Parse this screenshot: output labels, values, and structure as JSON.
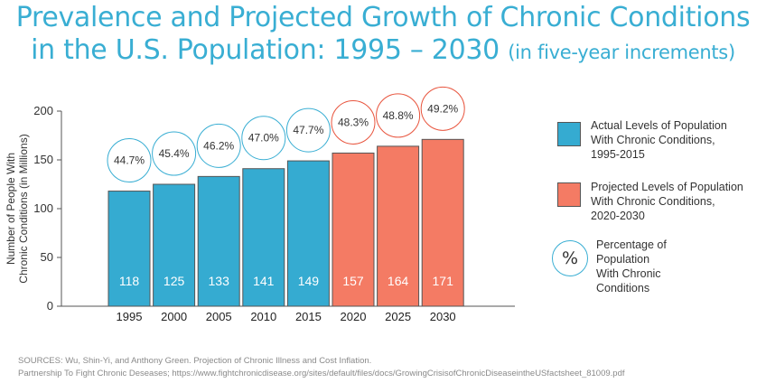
{
  "title": {
    "line1": "Prevalence and Projected Growth of Chronic Conditions",
    "line2_main": "in the U.S. Population: 1995 – 2030",
    "line2_sub": "(in five-year increments)"
  },
  "colors": {
    "title": "#39aed3",
    "actual": "#35abd1",
    "projected": "#f47b64",
    "actual_circle": "#39aed3",
    "projected_circle": "#e8543d"
  },
  "chart_data": {
    "type": "bar",
    "categories": [
      "1995",
      "2000",
      "2005",
      "2010",
      "2015",
      "2020",
      "2025",
      "2030"
    ],
    "values": [
      118,
      125,
      133,
      141,
      149,
      157,
      164,
      171
    ],
    "value_labels": [
      "118",
      "125",
      "133",
      "141",
      "149",
      "157",
      "164",
      "171"
    ],
    "percent_labels": [
      "44.7%",
      "45.4%",
      "46.2%",
      "47.0%",
      "47.7%",
      "48.3%",
      "48.8%",
      "49.2%"
    ],
    "series_type": [
      "actual",
      "actual",
      "actual",
      "actual",
      "actual",
      "projected",
      "projected",
      "projected"
    ],
    "ylabel_line1": "Number of People With",
    "ylabel_line2": "Chronic Conditions (in Millions)",
    "ylim": [
      0,
      200
    ],
    "yticks": [
      0,
      50,
      100,
      150,
      200
    ],
    "ytick_labels": [
      "0",
      "50",
      "100",
      "150",
      "200"
    ]
  },
  "legend": {
    "actual": [
      "Actual Levels of Population",
      "With Chronic Conditions,",
      "1995-2015"
    ],
    "projected": [
      "Projected Levels of Population",
      "With Chronic Conditions,",
      "2020-2030"
    ],
    "percent_symbol": "%",
    "percent": [
      "Percentage of",
      "Population",
      "With Chronic",
      "Conditions"
    ]
  },
  "sources": {
    "line1": "SOURCES: Wu, Shin-Yi, and Anthony Green. Projection of Chronic Illness and Cost Inflation.",
    "line2": "Partnership To Fight Chronic Deseases; https://www.fightchronicdisease.org/sites/default/files/docs/GrowingCrisisofChronicDiseaseintheUSfactsheet_81009.pdf"
  }
}
